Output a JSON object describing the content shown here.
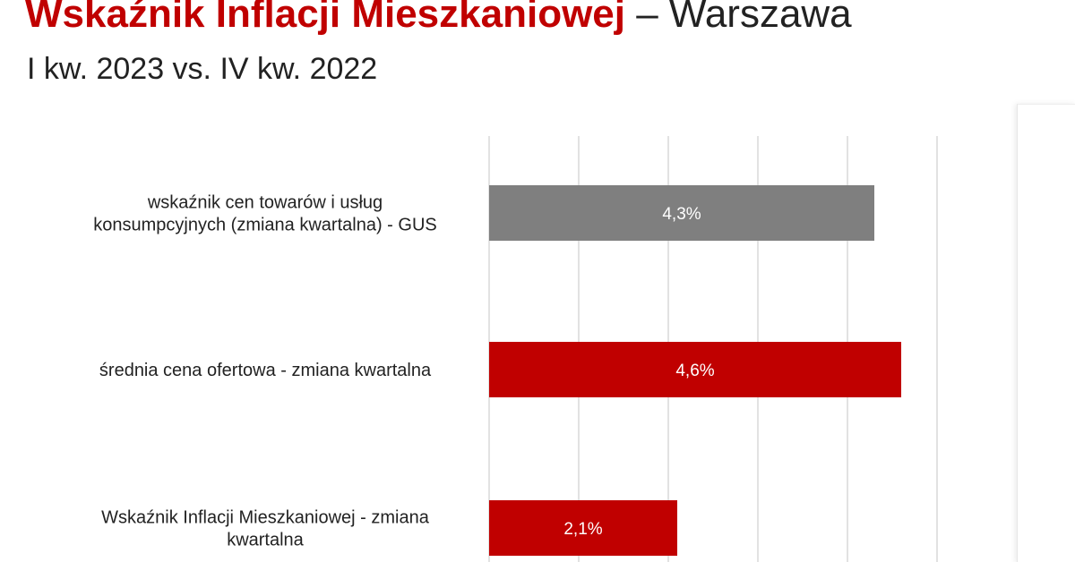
{
  "title": {
    "bold": "Wskaźnik Inflacji Mieszkaniowej",
    "rest": " – Warszawa"
  },
  "subtitle": "I kw. 2023 vs. IV kw. 2022",
  "colors": {
    "gray_bar": "#7f7f7f",
    "red_bar": "#c00000",
    "grid": "#d9d9d9"
  },
  "chart_data": {
    "type": "bar",
    "orientation": "horizontal",
    "categories": [
      [
        "wskaźnik cen towarów i usług",
        "konsumpcyjnych (zmiana kwartalna) - GUS"
      ],
      [
        "średnia cena ofertowa - zmiana kwartalna"
      ],
      [
        "Wskaźnik Inflacji Mieszkaniowej - zmiana",
        "kwartalna"
      ]
    ],
    "values": [
      4.3,
      4.6,
      2.1
    ],
    "value_labels": [
      "4,3%",
      "4,6%",
      "2,1%"
    ],
    "bar_colors": [
      "#7f7f7f",
      "#c00000",
      "#c00000"
    ],
    "xlim": [
      0,
      5
    ],
    "grid": true,
    "legend": "none"
  }
}
